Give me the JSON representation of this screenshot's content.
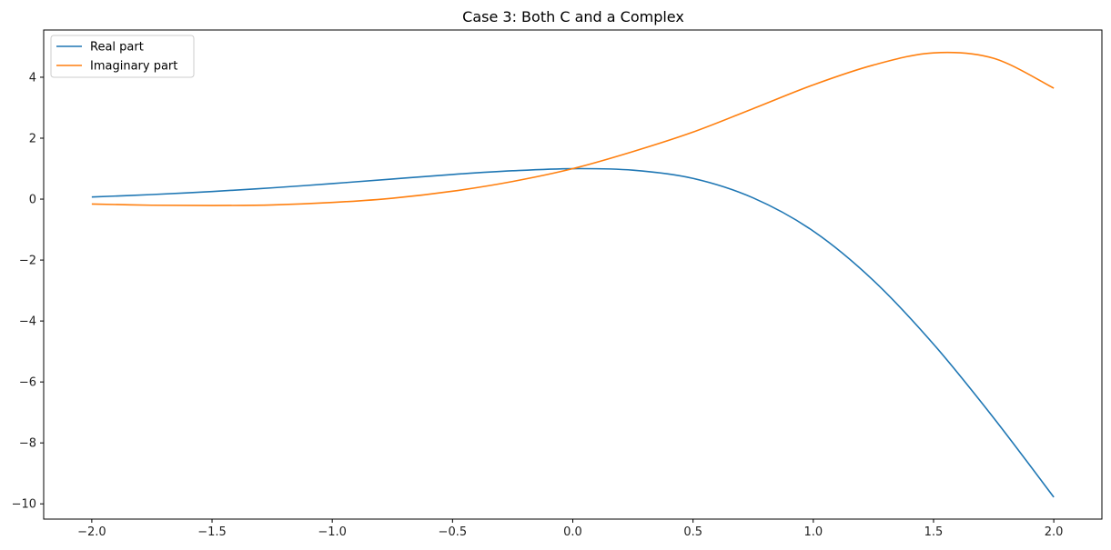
{
  "chart_data": {
    "type": "line",
    "title": "Case 3: Both C and a Complex",
    "xlabel": "",
    "ylabel": "",
    "xlim": [
      -2.2,
      2.2
    ],
    "ylim": [
      -10.5,
      5.55
    ],
    "xticks": [
      -2.0,
      -1.5,
      -1.0,
      -0.5,
      0.0,
      0.5,
      1.0,
      1.5,
      2.0
    ],
    "xtick_labels": [
      "−2.0",
      "−1.5",
      "−1.0",
      "−0.5",
      "0.0",
      "0.5",
      "1.0",
      "1.5",
      "2.0"
    ],
    "yticks": [
      -10,
      -8,
      -6,
      -4,
      -2,
      0,
      2,
      4
    ],
    "ytick_labels": [
      "−10",
      "−8",
      "−6",
      "−4",
      "−2",
      "0",
      "2",
      "4"
    ],
    "grid": false,
    "legend_position": "upper-left",
    "series": [
      {
        "name": "Real part",
        "color": "#1f77b4",
        "x": [
          -2.0,
          -1.75,
          -1.5,
          -1.25,
          -1.0,
          -0.75,
          -0.5,
          -0.25,
          0.0,
          0.25,
          0.5,
          0.75,
          1.0,
          1.25,
          1.5,
          1.75,
          2.0
        ],
        "y": [
          0.07,
          0.15,
          0.25,
          0.37,
          0.51,
          0.66,
          0.81,
          0.93,
          1.0,
          0.95,
          0.68,
          0.04,
          -1.05,
          -2.67,
          -4.76,
          -7.18,
          -9.78
        ]
      },
      {
        "name": "Imaginary part",
        "color": "#ff7f0e",
        "x": [
          -2.0,
          -1.75,
          -1.5,
          -1.25,
          -1.0,
          -0.75,
          -0.5,
          -0.25,
          0.0,
          0.25,
          0.5,
          0.75,
          1.0,
          1.25,
          1.5,
          1.75,
          2.0
        ],
        "y": [
          -0.16,
          -0.2,
          -0.21,
          -0.19,
          -0.11,
          0.03,
          0.26,
          0.58,
          1.0,
          1.56,
          2.2,
          2.97,
          3.75,
          4.4,
          4.8,
          4.62,
          3.64
        ]
      }
    ]
  }
}
